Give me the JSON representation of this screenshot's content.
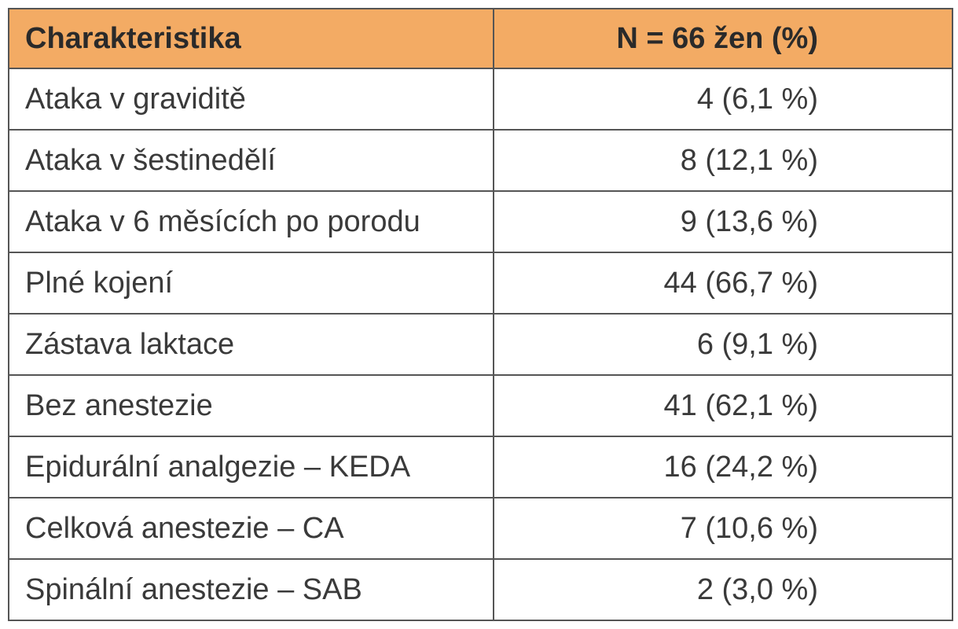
{
  "table": {
    "headers": {
      "characteristic": "Charakteristika",
      "count": "N = 66 žen (%)"
    },
    "rows": [
      {
        "label": "Ataka v graviditě",
        "value": "4 (6,1 %)"
      },
      {
        "label": "Ataka v šestinedělí",
        "value": "8 (12,1 %)"
      },
      {
        "label": "Ataka v 6 měsících po porodu",
        "value": "9 (13,6 %)"
      },
      {
        "label": "Plné kojení",
        "value": "44 (66,7 %)"
      },
      {
        "label": "Zástava laktace",
        "value": "6 (9,1 %)"
      },
      {
        "label": "Bez anestezie",
        "value": "41 (62,1 %)"
      },
      {
        "label": "Epidurální analgezie – KEDA",
        "value": "16 (24,2 %)"
      },
      {
        "label": "Celková anestezie – CA",
        "value": "7 (10,6 %)"
      },
      {
        "label": "Spinální anestezie – SAB",
        "value": "2 (3,0 %)"
      }
    ]
  },
  "colors": {
    "header_background": "#f3ab64",
    "border": "#555555",
    "text": "#3a3a3a"
  }
}
